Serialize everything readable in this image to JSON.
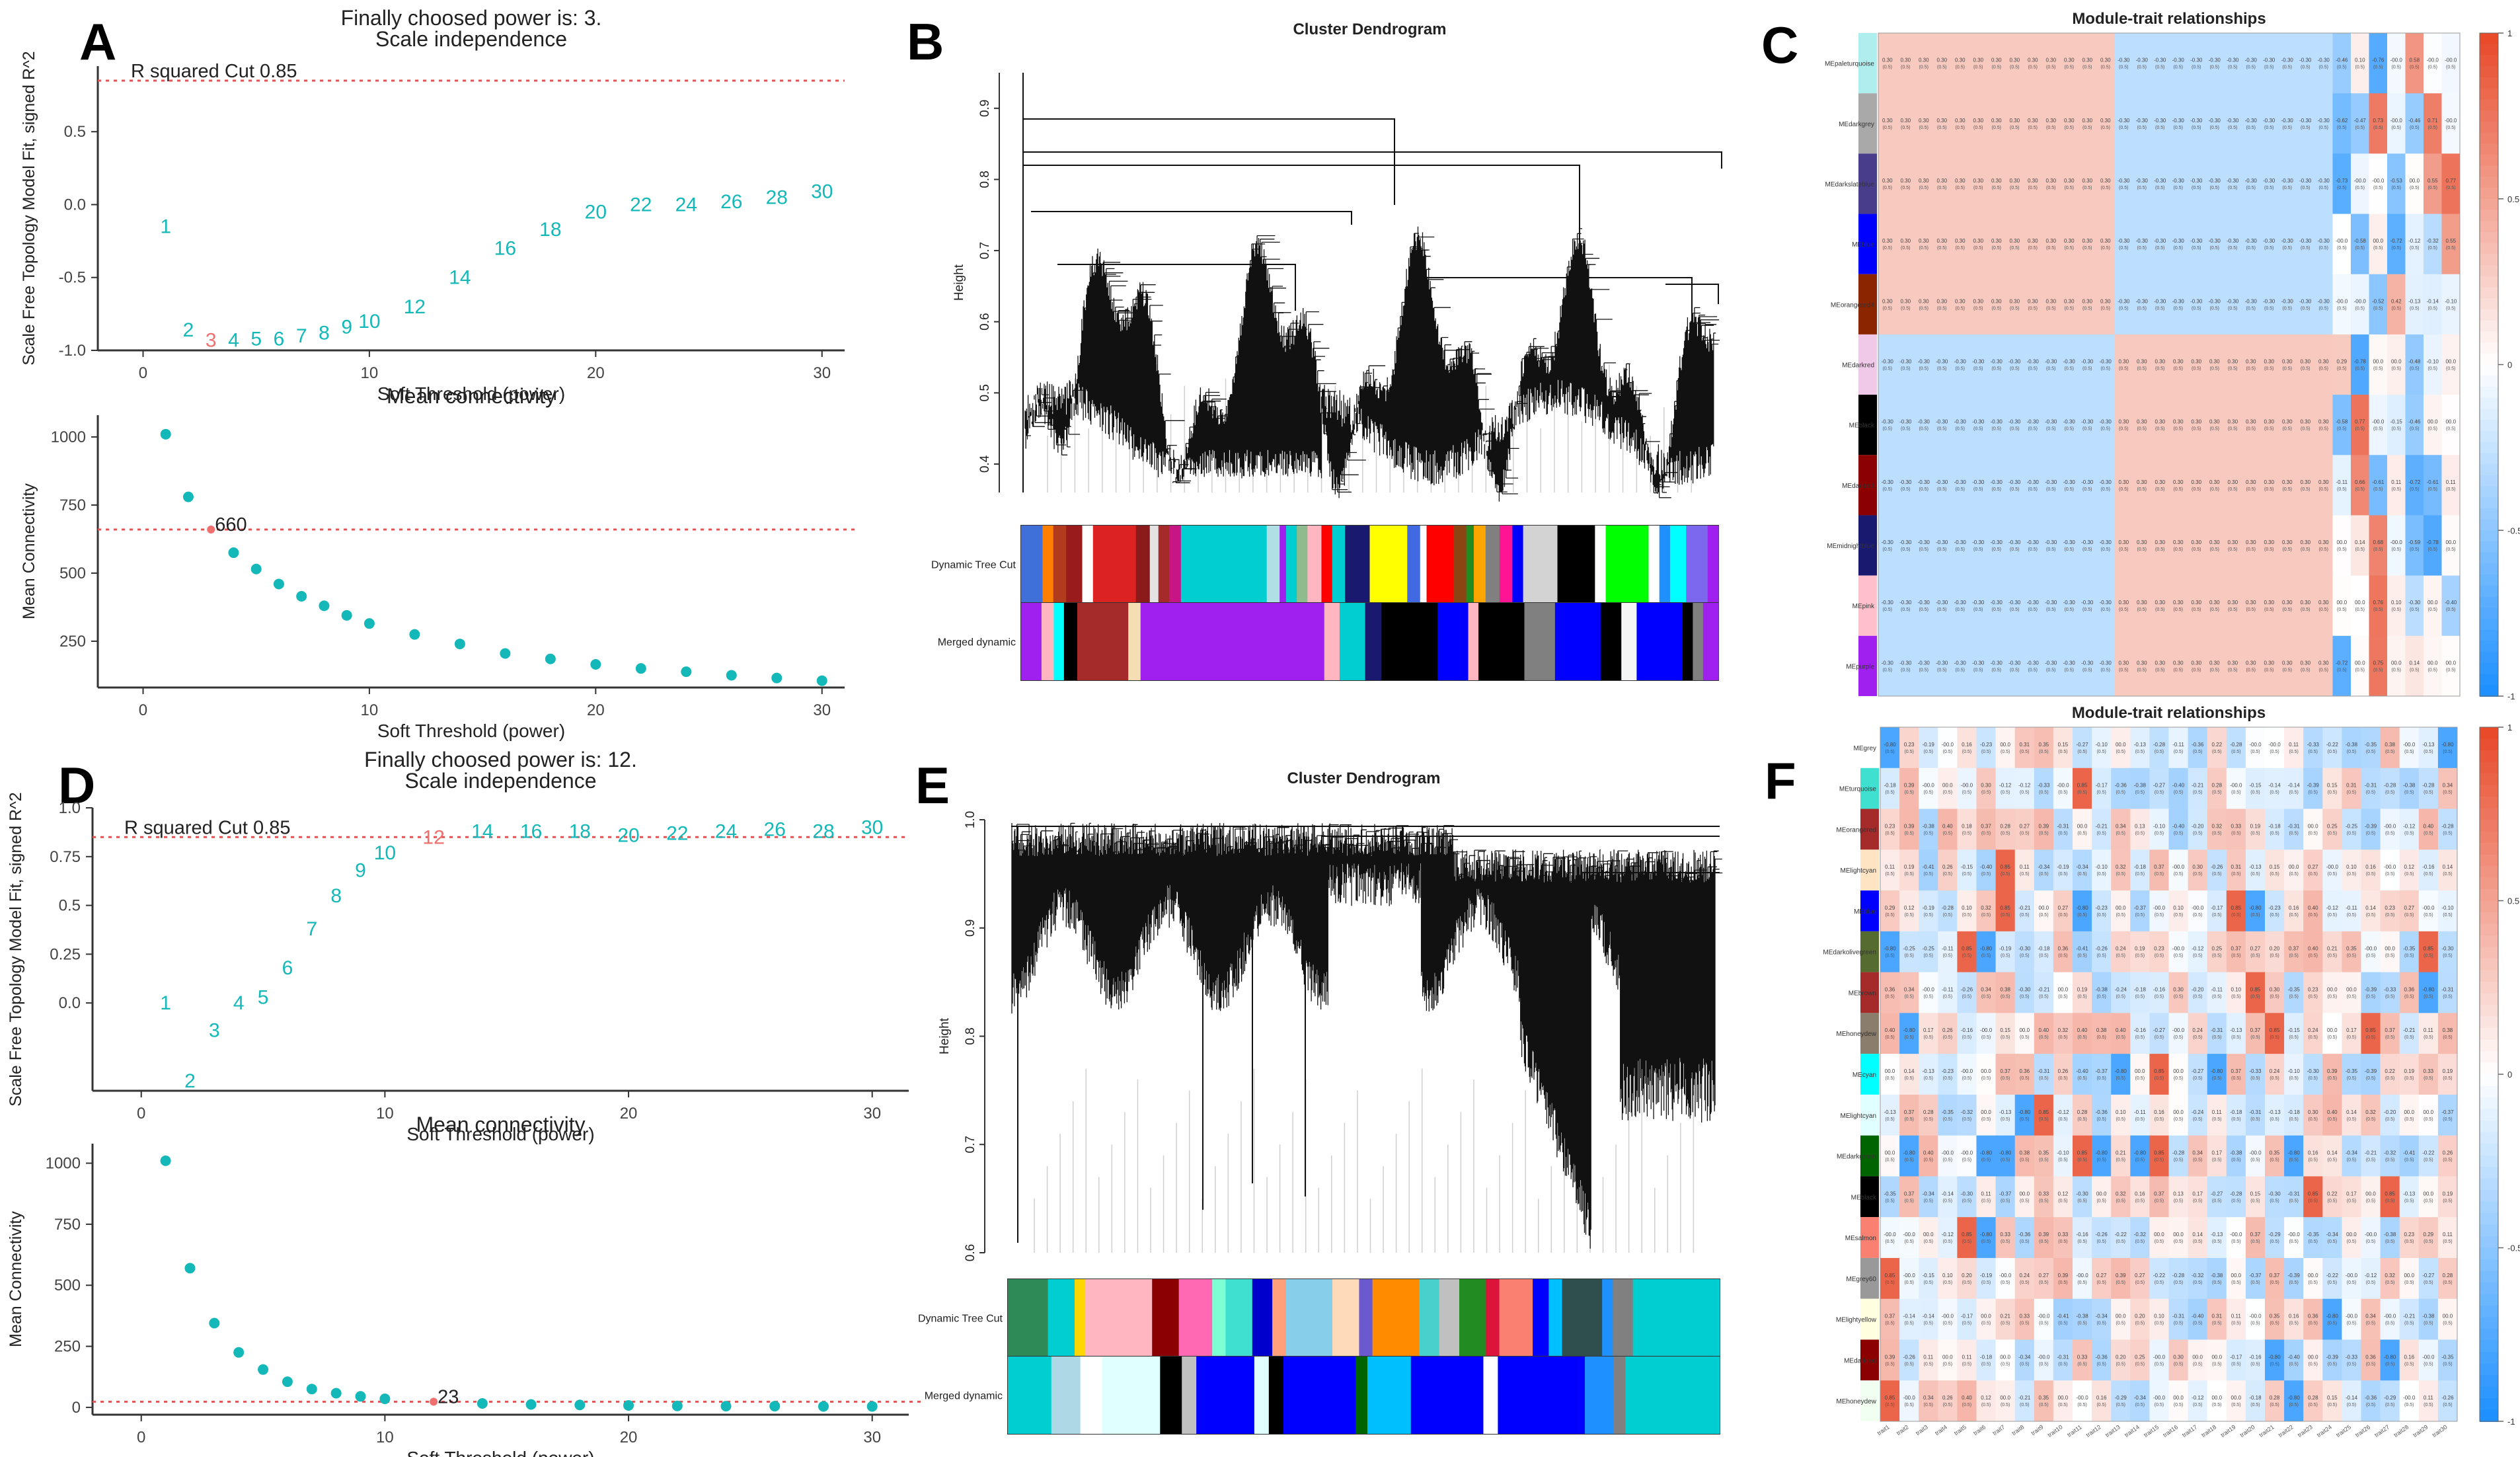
{
  "panels": {
    "A": {
      "letter": "A"
    },
    "B": {
      "letter": "B"
    },
    "C": {
      "letter": "C"
    },
    "D": {
      "letter": "D"
    },
    "E": {
      "letter": "E"
    },
    "F": {
      "letter": "F"
    }
  },
  "chart_data": [
    {
      "id": "A-top",
      "type": "scatter",
      "title": "Finally choosed power is: 3.",
      "subtitle": "Scale independence",
      "xlabel": "Soft Threshold (power)",
      "ylabel": "Scale Free Topology Model Fit, signed R^2",
      "xlim": [
        -2,
        31
      ],
      "ylim": [
        -1.0,
        0.95
      ],
      "xticks": [
        "0",
        "10",
        "20",
        "30"
      ],
      "yticks": [
        "-1.0",
        "-0.5",
        "0.0",
        "0.5"
      ],
      "cutoff": 0.85,
      "cutoff_label": "R squared Cut 0.85",
      "highlight_power": 3,
      "x": [
        1,
        2,
        3,
        4,
        5,
        6,
        7,
        8,
        9,
        10,
        12,
        14,
        16,
        18,
        20,
        22,
        24,
        26,
        28,
        30
      ],
      "y": [
        -0.15,
        -0.86,
        -0.93,
        -0.93,
        -0.92,
        -0.92,
        -0.9,
        -0.88,
        -0.84,
        -0.8,
        -0.7,
        -0.5,
        -0.3,
        -0.17,
        -0.05,
        0.0,
        0.0,
        0.02,
        0.05,
        0.09
      ]
    },
    {
      "id": "A-bottom",
      "type": "scatter",
      "title": "Mean connectivity",
      "xlabel": "Soft Threshold (power)",
      "ylabel": "Mean Connectivity",
      "xlim": [
        -2,
        31
      ],
      "ylim": [
        80,
        1080
      ],
      "xticks": [
        "0",
        "10",
        "20",
        "30"
      ],
      "yticks": [
        "250",
        "500",
        "750",
        "1000"
      ],
      "cutoff": 660,
      "cutoff_label": "660",
      "highlight_power": 3,
      "x": [
        1,
        2,
        3,
        4,
        5,
        6,
        7,
        8,
        9,
        10,
        12,
        14,
        16,
        18,
        20,
        22,
        24,
        26,
        28,
        30
      ],
      "y": [
        1010,
        780,
        660,
        575,
        515,
        460,
        415,
        380,
        345,
        315,
        275,
        240,
        205,
        185,
        165,
        150,
        138,
        125,
        115,
        105
      ]
    },
    {
      "id": "D-top",
      "type": "scatter",
      "title": "Finally choosed power is: 12.",
      "subtitle": "Scale independence",
      "xlabel": "Soft Threshold (power)",
      "ylabel": "Scale Free Topology Model Fit, signed R^2",
      "xlim": [
        -2,
        31.5
      ],
      "ylim": [
        -0.45,
        1.0
      ],
      "xticks": [
        "0",
        "10",
        "20",
        "30"
      ],
      "yticks": [
        "0.0",
        "0.25",
        "0.5",
        "0.75",
        "1.0"
      ],
      "cutoff": 0.85,
      "cutoff_label": "R squared Cut 0.85",
      "highlight_power": 12,
      "x": [
        1,
        2,
        3,
        4,
        5,
        6,
        7,
        8,
        9,
        10,
        12,
        14,
        16,
        18,
        20,
        22,
        24,
        26,
        28,
        30
      ],
      "y": [
        0.0,
        -0.4,
        -0.14,
        0.0,
        0.03,
        0.18,
        0.38,
        0.55,
        0.68,
        0.77,
        0.85,
        0.88,
        0.88,
        0.88,
        0.86,
        0.87,
        0.88,
        0.89,
        0.88,
        0.9
      ]
    },
    {
      "id": "D-bottom",
      "type": "scatter",
      "title": "Mean connectivity",
      "xlabel": "Soft Threshold (power)",
      "ylabel": "Mean Connectivity",
      "xlim": [
        -2,
        31.5
      ],
      "ylim": [
        -30,
        1080
      ],
      "xticks": [
        "0",
        "10",
        "20",
        "30"
      ],
      "yticks": [
        "0",
        "250",
        "500",
        "750",
        "1000"
      ],
      "cutoff": 23,
      "cutoff_label": "23",
      "highlight_power": 12,
      "x": [
        1,
        2,
        3,
        4,
        5,
        6,
        7,
        8,
        9,
        10,
        12,
        14,
        16,
        18,
        20,
        22,
        24,
        26,
        28,
        30
      ],
      "y": [
        1010,
        570,
        345,
        225,
        155,
        105,
        75,
        58,
        45,
        35,
        23,
        16,
        12,
        10,
        8,
        6,
        5,
        5,
        4,
        4
      ]
    },
    {
      "id": "B",
      "type": "dendrogram",
      "title": "Cluster Dendrogram",
      "ylabel": "Height",
      "yticks": [
        "0.4",
        "0.5",
        "0.6",
        "0.7",
        "0.8",
        "0.9"
      ],
      "ylim": [
        0.36,
        0.95
      ],
      "row_labels": [
        "Dynamic Tree Cut",
        "Merged dynamic"
      ],
      "dynamic_colors": [
        "#3f6fd8",
        "#ff7f00",
        "#b23b1e",
        "#9a1b1b",
        "#ffffff",
        "#d22",
        "#8b1a1a",
        "#e3e3e3",
        "#a52a2a",
        "#c71585",
        "#00ced1",
        "#b0e0e6",
        "#a020f0",
        "#00ced1",
        "#8fbc8f",
        "#ffb6c1",
        "#ff0000",
        "#00ced1",
        "#191970",
        "#ffff00",
        "#4169e1",
        "#ffffff",
        "#ff0000",
        "#8b4513",
        "#228b22",
        "#ffa500",
        "#808080",
        "#ff1493",
        "#0000ff",
        "#d3d3d3",
        "#000000",
        "#ffffff",
        "#00ff00",
        "#ffffff",
        "#1e90ff",
        "#00ffff",
        "#7b68ee",
        "#a020f0"
      ],
      "merged_colors": [
        "#a020f0",
        "#ffb6c1",
        "#00ffff",
        "#000000",
        "#a52a2a",
        "#f5deb3",
        "#a020f0",
        "#ffb6c1",
        "#00ced1",
        "#191970",
        "#000000",
        "#0000ff",
        "#ffb6c1",
        "#000000",
        "#808080",
        "#0000ff",
        "#000000",
        "#f5f5f5",
        "#0000ff",
        "#000000",
        "#808080",
        "#a020f0"
      ]
    },
    {
      "id": "E",
      "type": "dendrogram",
      "title": "Cluster Dendrogram",
      "ylabel": "Height",
      "yticks": [
        "0.6",
        "0.7",
        "0.8",
        "0.9",
        "1.0"
      ],
      "ylim": [
        0.6,
        1.0
      ],
      "row_labels": [
        "Dynamic Tree Cut",
        "Merged dynamic"
      ],
      "dynamic_colors": [
        "#2e8b57",
        "#00ced1",
        "#ffd700",
        "#ffb6c1",
        "#8b0000",
        "#ff69b4",
        "#7fffd4",
        "#40e0d0",
        "#0000cd",
        "#ffa07a",
        "#87ceeb",
        "#ffdab9",
        "#6a5acd",
        "#ff8c00",
        "#48d1cc",
        "#c0c0c0",
        "#228b22",
        "#dc143c",
        "#fa8072",
        "#0000ff",
        "#00bfff",
        "#2f4f4f",
        "#1e90ff",
        "#808080",
        "#00ced1"
      ],
      "merged_colors": [
        "#00ced1",
        "#add8e6",
        "#ffffff",
        "#e0ffff",
        "#000000",
        "#c0c0c0",
        "#0000ff",
        "#e0ffff",
        "#000000",
        "#0000ff",
        "#006400",
        "#00bfff",
        "#0000ff",
        "#ffffff",
        "#0000ff",
        "#1e90ff",
        "#808080",
        "#00ced1"
      ]
    },
    {
      "id": "C",
      "type": "heatmap",
      "title": "Module-trait relationships",
      "rows": [
        "MEpaleturquoise",
        "MEdarkgrey",
        "MEdarkslateblue",
        "MEblue",
        "MEorangered4",
        "MEdarkred",
        "MEblack",
        "MEdarkred",
        "MEmidnightblue",
        "MEpink",
        "MEpurple"
      ],
      "row_colors": [
        "#afeeee",
        "#a9a9a9",
        "#483d8b",
        "#0000ff",
        "#8b2500",
        "#f0c8e8",
        "#000000",
        "#8b0000",
        "#191970",
        "#ffc0cb",
        "#a020f0"
      ],
      "n_cols": 32,
      "legend_ticks": [
        "1",
        "0.5",
        "0",
        "-0.5",
        "-1"
      ],
      "sign_pattern": [
        [
          1,
          1,
          1,
          1,
          1,
          1,
          1,
          1,
          1,
          1,
          1,
          1,
          1,
          -1,
          -1,
          -1,
          -1,
          -1,
          -1,
          -1,
          -1,
          -1,
          -1,
          -1,
          -1,
          -1,
          0,
          -1,
          0,
          1,
          0,
          0
        ],
        [
          1,
          1,
          1,
          1,
          1,
          1,
          1,
          1,
          1,
          1,
          1,
          1,
          1,
          -1,
          -1,
          -1,
          -1,
          -1,
          -1,
          -1,
          -1,
          -1,
          -1,
          -1,
          -1,
          -1,
          -1,
          1,
          0,
          -1,
          1,
          0
        ],
        [
          1,
          1,
          1,
          1,
          1,
          1,
          1,
          1,
          1,
          1,
          1,
          1,
          1,
          -1,
          -1,
          -1,
          -1,
          -1,
          -1,
          -1,
          -1,
          -1,
          -1,
          -1,
          -1,
          -1,
          0,
          0,
          -1,
          0,
          1,
          1
        ],
        [
          1,
          1,
          1,
          1,
          1,
          1,
          1,
          1,
          1,
          1,
          1,
          1,
          1,
          -1,
          -1,
          -1,
          -1,
          -1,
          -1,
          -1,
          -1,
          -1,
          -1,
          -1,
          -1,
          0,
          -1,
          0,
          -1,
          0,
          -1,
          1
        ],
        [
          1,
          1,
          1,
          1,
          1,
          1,
          1,
          1,
          1,
          1,
          1,
          1,
          1,
          -1,
          -1,
          -1,
          -1,
          -1,
          -1,
          -1,
          -1,
          -1,
          -1,
          -1,
          -1,
          0,
          0,
          -1,
          1,
          0,
          0,
          0
        ],
        [
          -1,
          -1,
          -1,
          -1,
          -1,
          -1,
          -1,
          -1,
          -1,
          -1,
          -1,
          -1,
          -1,
          1,
          1,
          1,
          1,
          1,
          1,
          1,
          1,
          1,
          1,
          1,
          1,
          1,
          -1,
          0,
          0,
          -1,
          0,
          0
        ],
        [
          -1,
          -1,
          -1,
          -1,
          -1,
          -1,
          -1,
          -1,
          -1,
          -1,
          -1,
          -1,
          -1,
          1,
          1,
          1,
          1,
          1,
          1,
          1,
          1,
          1,
          1,
          1,
          1,
          -1,
          1,
          0,
          0,
          -1,
          0,
          0
        ],
        [
          -1,
          -1,
          -1,
          -1,
          -1,
          -1,
          -1,
          -1,
          -1,
          -1,
          -1,
          -1,
          -1,
          1,
          1,
          1,
          1,
          1,
          1,
          1,
          1,
          1,
          1,
          1,
          1,
          0,
          1,
          -1,
          0,
          -1,
          -1,
          0
        ],
        [
          -1,
          -1,
          -1,
          -1,
          -1,
          -1,
          -1,
          -1,
          -1,
          -1,
          -1,
          -1,
          -1,
          1,
          1,
          1,
          1,
          1,
          1,
          1,
          1,
          1,
          1,
          1,
          1,
          0,
          0,
          1,
          0,
          -1,
          -1,
          0
        ],
        [
          -1,
          -1,
          -1,
          -1,
          -1,
          -1,
          -1,
          -1,
          -1,
          -1,
          -1,
          -1,
          -1,
          1,
          1,
          1,
          1,
          1,
          1,
          1,
          1,
          1,
          1,
          1,
          1,
          0,
          0,
          1,
          0,
          -1,
          0,
          -1
        ],
        [
          -1,
          -1,
          -1,
          -1,
          -1,
          -1,
          -1,
          -1,
          -1,
          -1,
          -1,
          -1,
          -1,
          1,
          1,
          1,
          1,
          1,
          1,
          1,
          1,
          1,
          1,
          1,
          1,
          -1,
          0,
          1,
          0,
          0,
          0,
          0
        ]
      ]
    },
    {
      "id": "F",
      "type": "heatmap",
      "title": "Module-trait relationships",
      "rows": [
        "MEgrey",
        "MEturquoise",
        "MEorangered",
        "MElightcyan",
        "MEblue",
        "MEdarkolivegreen",
        "MEbrown",
        "MEhoneydew",
        "MEcyan",
        "MElightcyan",
        "MEdarkgreen",
        "MEblack",
        "MEsalmon",
        "MEgrey60",
        "MElightyellow",
        "MEdarkred",
        "MEhoneydew"
      ],
      "row_colors": [
        "#ffffff",
        "#40e0d0",
        "#a52a2a",
        "#ffe4c4",
        "#0000ff",
        "#556b2f",
        "#a52a2a",
        "#8b7d6b",
        "#00ffff",
        "#e0ffff",
        "#006400",
        "#000000",
        "#fa8072",
        "#999999",
        "#ffffe0",
        "#8b0000",
        "#f0fff0"
      ],
      "n_cols": 30,
      "legend_ticks": [
        "1",
        "0.5",
        "0",
        "-0.5",
        "-1"
      ]
    }
  ]
}
